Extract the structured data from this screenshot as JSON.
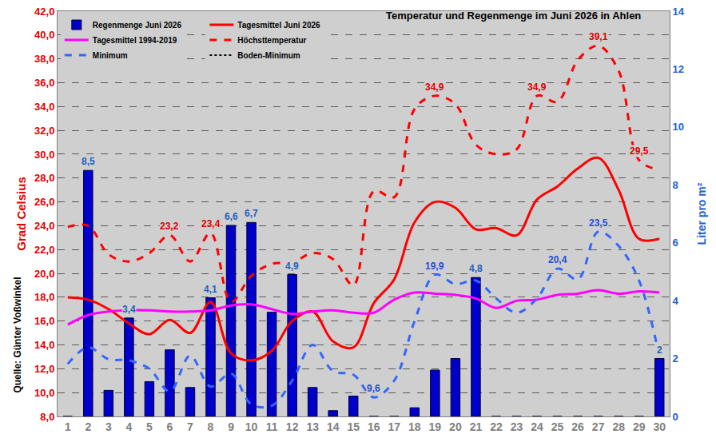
{
  "chart_data": {
    "type": "line",
    "title": "Temperatur und Regenmenge im Juni 2026 in Ahlen",
    "ylabel": "Grad Celsius",
    "y2label": "Liter pro m²",
    "source": "Quelle: Günter Voßwinkel",
    "x": [
      1,
      2,
      3,
      4,
      5,
      6,
      7,
      8,
      9,
      10,
      11,
      12,
      13,
      14,
      15,
      16,
      17,
      18,
      19,
      20,
      21,
      22,
      23,
      24,
      25,
      26,
      27,
      28,
      29,
      30
    ],
    "xlim": [
      0.5,
      30.5
    ],
    "xticks": [
      1,
      2,
      3,
      4,
      5,
      6,
      7,
      8,
      9,
      10,
      11,
      12,
      13,
      14,
      15,
      16,
      17,
      18,
      19,
      20,
      21,
      22,
      23,
      24,
      25,
      26,
      27,
      28,
      29,
      30
    ],
    "ylim": [
      8,
      42
    ],
    "yticks": [
      {
        "value": 8,
        "label": "8,0"
      },
      {
        "value": 10,
        "label": "10,0"
      },
      {
        "value": 12,
        "label": "12,0"
      },
      {
        "value": 14,
        "label": "14,0"
      },
      {
        "value": 16,
        "label": "16,0"
      },
      {
        "value": 18,
        "label": "18,0"
      },
      {
        "value": 20,
        "label": "20,0"
      },
      {
        "value": 22,
        "label": "22,0"
      },
      {
        "value": 24,
        "label": "24,0"
      },
      {
        "value": 26,
        "label": "26,0"
      },
      {
        "value": 28,
        "label": "28,0"
      },
      {
        "value": 30,
        "label": "30,0"
      },
      {
        "value": 32,
        "label": "32,0"
      },
      {
        "value": 34,
        "label": "34,0"
      },
      {
        "value": 36,
        "label": "36,0"
      },
      {
        "value": 38,
        "label": "38,0"
      },
      {
        "value": 40,
        "label": "40,0"
      },
      {
        "value": 42,
        "label": "42,0"
      }
    ],
    "y2lim": [
      0,
      14
    ],
    "y2ticks": [
      0,
      2,
      4,
      6,
      8,
      10,
      12,
      14
    ],
    "grid": true,
    "legend": "top left",
    "series": [
      {
        "name": "Regenmenge Juni 2026",
        "type": "bar",
        "axis": "y2",
        "color": "#0000cc",
        "values": [
          0,
          8.5,
          0.9,
          3.4,
          1.2,
          2.3,
          1.0,
          4.1,
          6.6,
          6.7,
          3.6,
          4.9,
          1.0,
          0.2,
          0.7,
          0,
          0,
          0.3,
          1.6,
          2.0,
          4.8,
          0,
          0,
          0,
          0,
          0,
          0,
          0,
          0,
          2
        ]
      },
      {
        "name": "Tagesmittel Juni 2026",
        "type": "line",
        "color": "#ff0000",
        "line_style": "solid",
        "values": [
          18.0,
          17.8,
          17.0,
          15.8,
          14.9,
          16.1,
          15.0,
          17.6,
          13.3,
          12.7,
          13.5,
          16.0,
          16.8,
          14.3,
          13.8,
          17.5,
          19.5,
          24.3,
          26.0,
          25.5,
          23.7,
          23.8,
          23.2,
          26.2,
          27.3,
          28.8,
          29.7,
          27.0,
          22.9,
          22.9
        ]
      },
      {
        "name": "Tagesmittel 1994-2019",
        "type": "line",
        "color": "#ff00ff",
        "line_style": "solid",
        "values": [
          15.7,
          16.5,
          16.8,
          16.9,
          16.9,
          16.8,
          16.8,
          16.9,
          17.3,
          17.4,
          17.0,
          16.6,
          16.8,
          16.9,
          16.7,
          16.7,
          17.8,
          18.4,
          18.3,
          18.2,
          17.9,
          17.1,
          17.7,
          17.8,
          18.2,
          18.3,
          18.6,
          18.3,
          18.5,
          18.4
        ]
      },
      {
        "name": "Höchsttemperatur",
        "type": "line",
        "color": "#ff0000",
        "line_style": "dash",
        "values": [
          23.9,
          24.0,
          21.6,
          21.0,
          21.7,
          23.2,
          21.0,
          23.4,
          17.6,
          19.8,
          20.8,
          20.9,
          21.7,
          21.2,
          19.0,
          26.9,
          26.4,
          33.8,
          34.9,
          34.2,
          30.8,
          30.0,
          30.4,
          34.9,
          34.4,
          37.9,
          39.1,
          37.0,
          29.5,
          28.7
        ]
      },
      {
        "name": "Minimum",
        "type": "line",
        "color": "#3366ff",
        "line_style": "dash",
        "values": [
          12.4,
          13.8,
          12.8,
          12.7,
          12.0,
          10.1,
          13.1,
          10.5,
          11.6,
          9.0,
          8.9,
          11.0,
          14.0,
          11.8,
          11.5,
          9.6,
          11.0,
          16.0,
          19.9,
          19.1,
          19.4,
          17.9,
          16.7,
          17.9,
          20.4,
          19.5,
          23.5,
          22.3,
          19.4,
          13.0
        ]
      },
      {
        "name": "Boden-Minimum",
        "type": "line",
        "color": "#000000",
        "line_style": "dot",
        "values": [
          null,
          null,
          null,
          null,
          null,
          null,
          null,
          null,
          null,
          null,
          null,
          null,
          null,
          null,
          null,
          null,
          null,
          null,
          null,
          null,
          null,
          null,
          null,
          null,
          null,
          null,
          null,
          null,
          null,
          null
        ]
      }
    ],
    "annotations": [
      {
        "x": 2,
        "y": 8.5,
        "text": "8,5",
        "axis": "y2",
        "color": "#1f5fbf"
      },
      {
        "x": 4,
        "y": 3.4,
        "text": "3,4",
        "axis": "y2",
        "color": "#1f5fbf"
      },
      {
        "x": 8,
        "y": 4.1,
        "text": "4,1",
        "axis": "y2",
        "color": "#1f5fbf"
      },
      {
        "x": 9,
        "y": 6.6,
        "text": "6,6",
        "axis": "y2",
        "color": "#1f5fbf"
      },
      {
        "x": 10,
        "y": 6.7,
        "text": "6,7",
        "axis": "y2",
        "color": "#1f5fbf"
      },
      {
        "x": 12,
        "y": 4.9,
        "text": "4,9",
        "axis": "y2",
        "color": "#1f5fbf"
      },
      {
        "x": 21,
        "y": 4.8,
        "text": "4,8",
        "axis": "y2",
        "color": "#1f5fbf"
      },
      {
        "x": 30,
        "y": 2,
        "text": "2",
        "axis": "y2",
        "color": "#1f5fbf"
      },
      {
        "x": 6,
        "y": 23.2,
        "text": "23,2",
        "color": "#e00000"
      },
      {
        "x": 8,
        "y": 23.4,
        "text": "23,4",
        "color": "#e00000"
      },
      {
        "x": 19,
        "y": 34.9,
        "text": "34,9",
        "color": "#e00000"
      },
      {
        "x": 24,
        "y": 34.9,
        "text": "34,9",
        "color": "#e00000"
      },
      {
        "x": 27,
        "y": 39.1,
        "text": "39,1",
        "color": "#e00000"
      },
      {
        "x": 29,
        "y": 29.5,
        "text": "29,5",
        "color": "#e00000"
      },
      {
        "x": 16,
        "y": 9.6,
        "text": "9,6",
        "color": "#1f4fd0"
      },
      {
        "x": 19,
        "y": 19.9,
        "text": "19,9",
        "color": "#1f4fd0"
      },
      {
        "x": 25,
        "y": 20.4,
        "text": "20,4",
        "color": "#1f4fd0"
      },
      {
        "x": 27,
        "y": 23.5,
        "text": "23,5",
        "color": "#1f4fd0"
      }
    ]
  }
}
